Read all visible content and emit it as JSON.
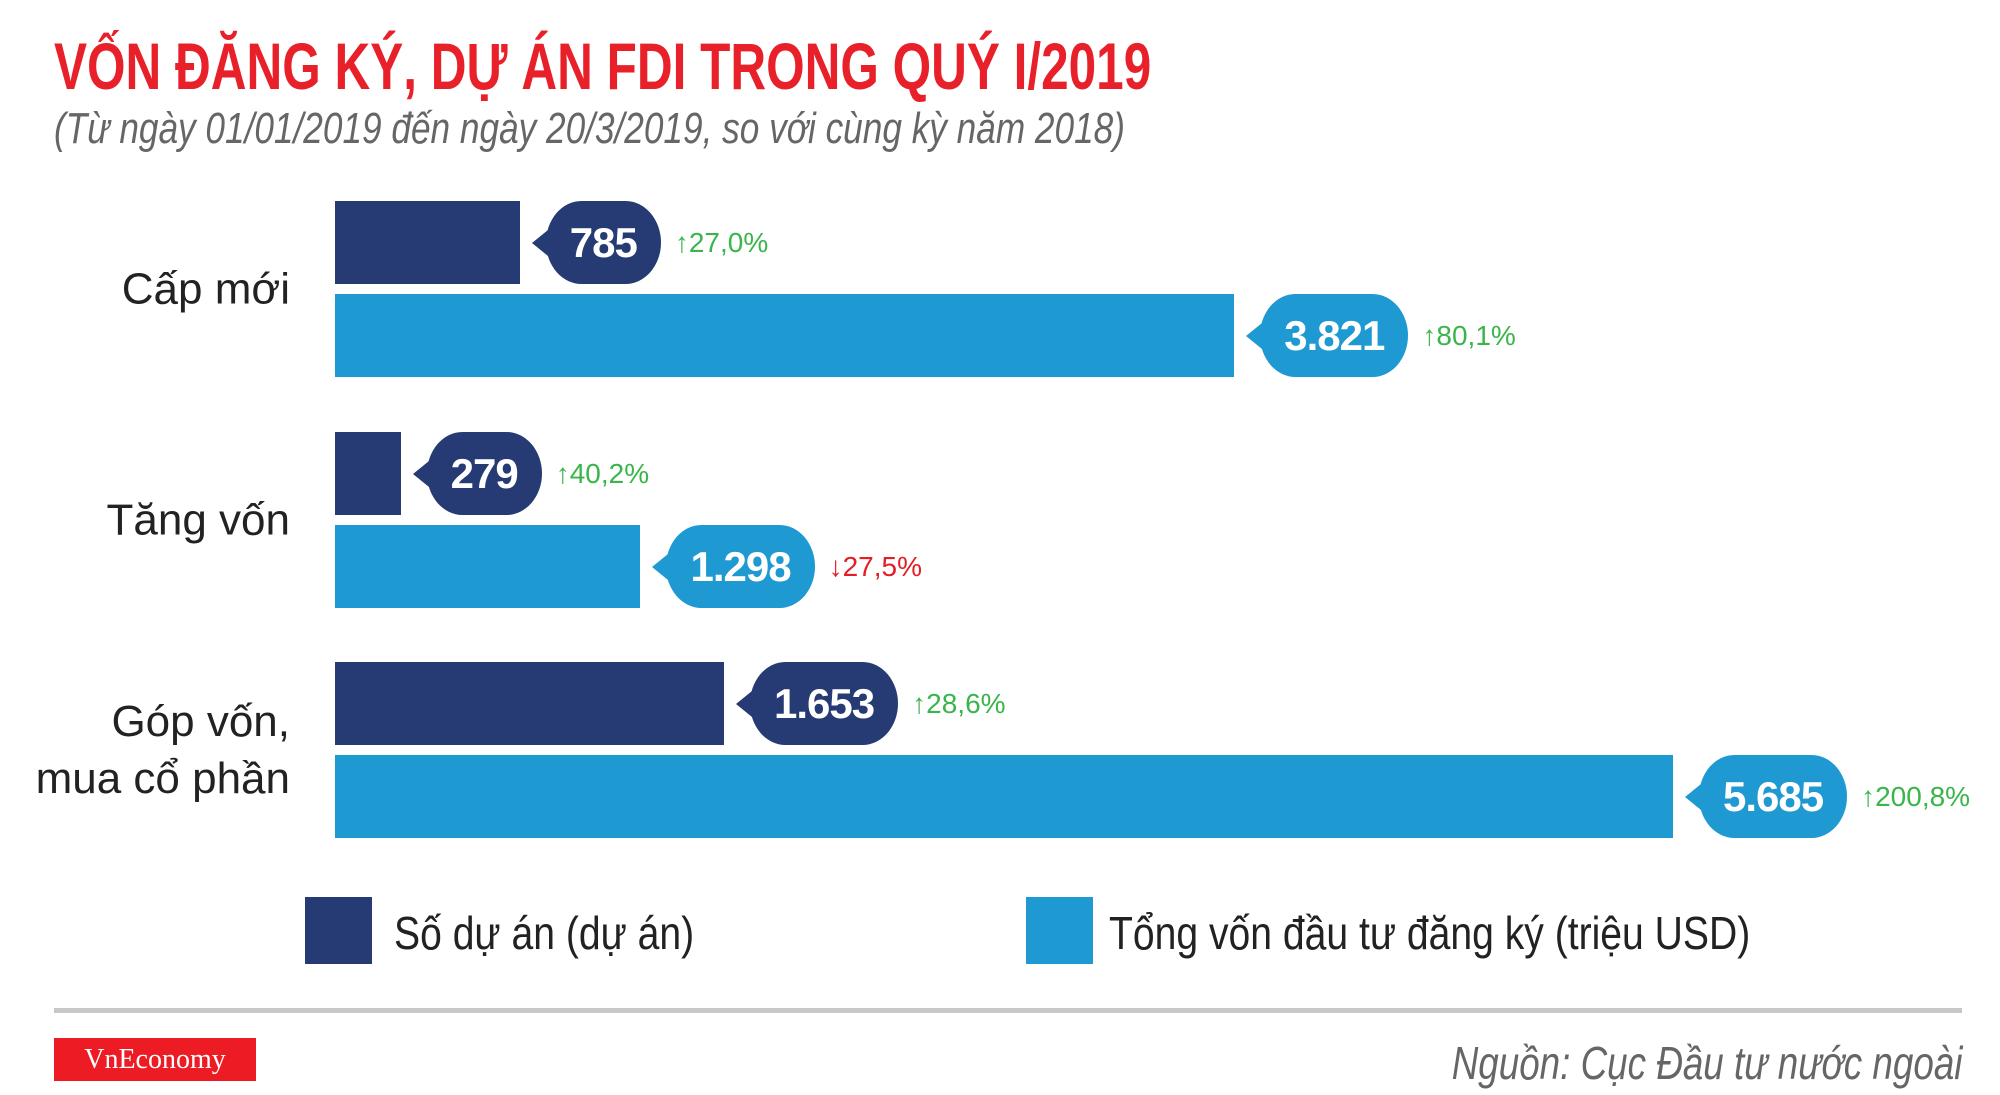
{
  "title": "VỐN ĐĂNG KÝ, DỰ ÁN FDI TRONG QUÝ I/2019",
  "subtitle": "(Từ ngày 01/01/2019 đến ngày 20/3/2019, so với cùng kỳ năm 2018)",
  "colors": {
    "dark": "#263a73",
    "light": "#1f99d2",
    "up": "#3ab54a",
    "down": "#e31e24",
    "title": "#e8202a"
  },
  "chart_data": {
    "type": "bar",
    "orientation": "horizontal",
    "categories": [
      "Cấp mới",
      "Tăng vốn",
      "Góp vốn,\nmua cổ phần"
    ],
    "series": [
      {
        "name": "Số dự án (dự án)",
        "color": "#263a73",
        "values": [
          785,
          279,
          1653
        ],
        "labels": [
          "785",
          "279",
          "1.653"
        ],
        "changes": [
          "27,0%",
          "40,2%",
          "28,6%"
        ],
        "directions": [
          "up",
          "up",
          "up"
        ]
      },
      {
        "name": "Tổng vốn đầu tư đăng ký (triệu USD)",
        "color": "#1f99d2",
        "values": [
          3821,
          1298,
          5685
        ],
        "labels": [
          "3.821",
          "1.298",
          "5.685"
        ],
        "changes": [
          "80,1%",
          "27,5%",
          "200,8%"
        ],
        "directions": [
          "up",
          "down",
          "up"
        ]
      }
    ],
    "xlim": [
      0,
      5685
    ],
    "grid": false,
    "legend": "bottom"
  },
  "footer": {
    "logo": "VnEconomy",
    "source": "Nguồn: Cục Đầu tư nước ngoài"
  }
}
